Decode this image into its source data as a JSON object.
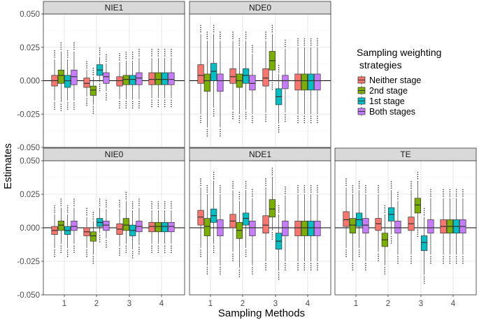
{
  "chart_data": {
    "type": "boxplot",
    "layout": "facet grid, 2 rows x 3 columns, shared y axis",
    "xlabel": "Sampling Methods",
    "ylabel": "Estimates",
    "categories": [
      "1",
      "2",
      "3",
      "4"
    ],
    "ylim": [
      -0.05,
      0.05
    ],
    "yticks": [
      -0.05,
      -0.025,
      0.0,
      0.025,
      0.05
    ],
    "ytick_labels": [
      "-0.050",
      "-0.025",
      "0.000",
      "0.025",
      "0.050"
    ],
    "reference_line": 0,
    "grid": true,
    "legend": {
      "title_lines": [
        "Sampling weighting",
        " strategies"
      ],
      "position": "right",
      "items": [
        {
          "name": "Neither stage",
          "color": "#F8766D"
        },
        {
          "name": "2nd stage",
          "color": "#7CAE00"
        },
        {
          "name": "1st stage",
          "color": "#00BFC4"
        },
        {
          "name": "Both stages",
          "color": "#C77CFF"
        }
      ]
    },
    "series_order": [
      "Neither stage",
      "2nd stage",
      "1st stage",
      "Both stages"
    ],
    "panels": [
      {
        "title": "NIE1",
        "show_x_labels": false,
        "boxes": [
          [
            [
              -0.015,
              -0.004,
              0.0,
              0.004,
              0.016
            ],
            [
              -0.016,
              -0.002,
              0.004,
              0.008,
              0.022
            ],
            [
              -0.015,
              -0.005,
              0.0,
              0.004,
              0.016
            ],
            [
              -0.015,
              -0.003,
              0.003,
              0.008,
              0.022
            ]
          ],
          [
            [
              -0.012,
              -0.005,
              -0.002,
              0.002,
              0.008
            ],
            [
              -0.018,
              -0.011,
              -0.007,
              -0.004,
              0.003
            ],
            [
              -0.001,
              0.004,
              0.008,
              0.012,
              0.018
            ],
            [
              -0.008,
              -0.002,
              0.003,
              0.006,
              0.013
            ]
          ],
          [
            [
              -0.014,
              -0.004,
              0.0,
              0.003,
              0.014
            ],
            [
              -0.014,
              -0.003,
              0.001,
              0.004,
              0.015
            ],
            [
              -0.014,
              -0.003,
              0.001,
              0.004,
              0.015
            ],
            [
              -0.014,
              -0.003,
              0.002,
              0.006,
              0.017
            ]
          ],
          [
            [
              -0.013,
              -0.003,
              0.001,
              0.006,
              0.017
            ],
            [
              -0.013,
              -0.003,
              0.001,
              0.006,
              0.017
            ],
            [
              -0.013,
              -0.003,
              0.001,
              0.006,
              0.017
            ],
            [
              -0.013,
              -0.003,
              0.001,
              0.006,
              0.017
            ]
          ]
        ]
      },
      {
        "title": "NDE0",
        "show_x_labels": false,
        "boxes": [
          [
            [
              -0.025,
              -0.002,
              0.004,
              0.012,
              0.035
            ],
            [
              -0.035,
              -0.008,
              0.0,
              0.005,
              0.03
            ],
            [
              -0.02,
              0.0,
              0.007,
              0.013,
              0.035
            ],
            [
              -0.035,
              -0.008,
              0.0,
              0.005,
              0.03
            ]
          ],
          [
            [
              -0.022,
              -0.002,
              0.003,
              0.009,
              0.03
            ],
            [
              -0.025,
              -0.005,
              0.0,
              0.005,
              0.025
            ],
            [
              -0.022,
              -0.002,
              0.004,
              0.009,
              0.03
            ],
            [
              -0.025,
              -0.007,
              -0.002,
              0.004,
              0.02
            ]
          ],
          [
            [
              -0.024,
              -0.004,
              0.002,
              0.009,
              0.03
            ],
            [
              0.0,
              0.008,
              0.015,
              0.022,
              0.035
            ],
            [
              -0.032,
              -0.018,
              -0.012,
              -0.006,
              0.005
            ],
            [
              -0.024,
              -0.006,
              0.0,
              0.004,
              0.024
            ]
          ],
          [
            [
              -0.025,
              -0.007,
              0.0,
              0.005,
              0.025
            ],
            [
              -0.025,
              -0.007,
              0.0,
              0.005,
              0.025
            ],
            [
              -0.025,
              -0.007,
              0.0,
              0.005,
              0.025
            ],
            [
              -0.025,
              -0.007,
              0.0,
              0.005,
              0.025
            ]
          ]
        ]
      },
      {
        "title": "NIE0",
        "show_x_labels": false,
        "boxes": [
          [
            [
              -0.015,
              -0.005,
              -0.002,
              0.001,
              0.01
            ],
            [
              -0.012,
              -0.002,
              0.002,
              0.005,
              0.015
            ],
            [
              -0.015,
              -0.005,
              -0.002,
              0.001,
              0.01
            ],
            [
              -0.012,
              -0.002,
              0.001,
              0.005,
              0.015
            ]
          ],
          [
            [
              -0.015,
              -0.006,
              -0.003,
              0.0,
              0.008
            ],
            [
              -0.02,
              -0.01,
              -0.006,
              -0.003,
              0.005
            ],
            [
              -0.004,
              0.001,
              0.004,
              0.007,
              0.015
            ],
            [
              -0.008,
              -0.002,
              0.002,
              0.005,
              0.014
            ]
          ],
          [
            [
              -0.014,
              -0.005,
              -0.001,
              0.003,
              0.014
            ],
            [
              -0.012,
              -0.002,
              0.002,
              0.007,
              0.02
            ],
            [
              -0.016,
              -0.006,
              -0.002,
              0.002,
              0.013
            ],
            [
              -0.013,
              -0.003,
              0.001,
              0.005,
              0.015
            ]
          ],
          [
            [
              -0.012,
              -0.003,
              0.001,
              0.004,
              0.013
            ],
            [
              -0.012,
              -0.003,
              0.001,
              0.004,
              0.013
            ],
            [
              -0.012,
              -0.003,
              0.001,
              0.004,
              0.013
            ],
            [
              -0.012,
              -0.003,
              0.001,
              0.004,
              0.013
            ]
          ]
        ]
      },
      {
        "title": "NDE1",
        "show_x_labels": true,
        "boxes": [
          [
            [
              -0.015,
              0.002,
              0.008,
              0.013,
              0.03
            ],
            [
              -0.028,
              -0.006,
              0.001,
              0.007,
              0.025
            ],
            [
              -0.012,
              0.004,
              0.009,
              0.014,
              0.035
            ],
            [
              -0.028,
              -0.006,
              0.0,
              0.006,
              0.025
            ]
          ],
          [
            [
              -0.018,
              0.0,
              0.005,
              0.01,
              0.028
            ],
            [
              -0.03,
              -0.008,
              -0.002,
              0.004,
              0.02
            ],
            [
              -0.015,
              0.002,
              0.007,
              0.011,
              0.028
            ],
            [
              -0.028,
              -0.006,
              0.0,
              0.005,
              0.022
            ]
          ],
          [
            [
              -0.025,
              -0.004,
              0.002,
              0.009,
              0.03
            ],
            [
              -0.002,
              0.008,
              0.014,
              0.021,
              0.038
            ],
            [
              -0.032,
              -0.016,
              -0.01,
              -0.004,
              0.01
            ],
            [
              -0.025,
              -0.006,
              0.0,
              0.005,
              0.024
            ]
          ],
          [
            [
              -0.025,
              -0.006,
              0.0,
              0.005,
              0.025
            ],
            [
              -0.025,
              -0.006,
              0.0,
              0.005,
              0.025
            ],
            [
              -0.025,
              -0.006,
              0.0,
              0.005,
              0.025
            ],
            [
              -0.025,
              -0.006,
              0.0,
              0.005,
              0.025
            ]
          ]
        ]
      },
      {
        "title": "TE",
        "show_x_labels": true,
        "boxes": [
          [
            [
              -0.015,
              0.001,
              0.006,
              0.012,
              0.03
            ],
            [
              -0.025,
              -0.004,
              0.002,
              0.007,
              0.025
            ],
            [
              -0.015,
              0.001,
              0.006,
              0.011,
              0.028
            ],
            [
              -0.025,
              -0.004,
              0.002,
              0.007,
              0.025
            ]
          ],
          [
            [
              -0.018,
              -0.002,
              0.003,
              0.007,
              0.025
            ],
            [
              -0.028,
              -0.014,
              -0.009,
              -0.004,
              0.01
            ],
            [
              -0.005,
              0.005,
              0.01,
              0.015,
              0.028
            ],
            [
              -0.02,
              -0.004,
              0.0,
              0.005,
              0.02
            ]
          ],
          [
            [
              -0.02,
              -0.002,
              0.003,
              0.008,
              0.028
            ],
            [
              0.0,
              0.011,
              0.017,
              0.022,
              0.035
            ],
            [
              -0.035,
              -0.017,
              -0.011,
              -0.006,
              0.008
            ],
            [
              -0.02,
              -0.004,
              0.0,
              0.006,
              0.022
            ]
          ],
          [
            [
              -0.02,
              -0.004,
              0.001,
              0.006,
              0.022
            ],
            [
              -0.02,
              -0.004,
              0.001,
              0.006,
              0.022
            ],
            [
              -0.02,
              -0.004,
              0.001,
              0.006,
              0.022
            ],
            [
              -0.02,
              -0.004,
              0.001,
              0.006,
              0.022
            ]
          ]
        ]
      }
    ]
  }
}
